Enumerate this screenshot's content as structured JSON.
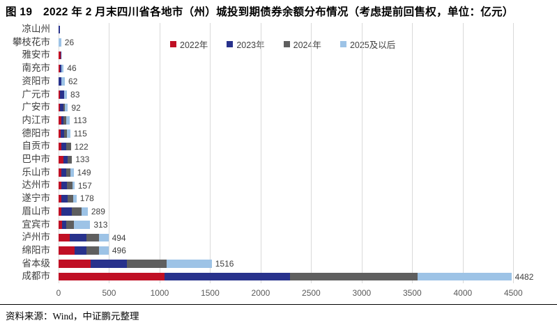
{
  "title": "图 19　2022 年 2 月末四川省各地市（州）城投到期债券余额分布情况（考虑提前回售权，单位：亿元）",
  "source": "资料来源：Wind，中证鹏元整理",
  "colors": {
    "red_2022": "#C01025",
    "navy_2023": "#28328C",
    "gray_2024": "#5F5F5F",
    "lightblue_2025": "#9DC3E6",
    "gridline": "#D9D9D9",
    "axis_text": "#595959",
    "label_text": "#404040"
  },
  "chart_data": {
    "type": "bar",
    "orientation": "horizontal",
    "stacked": true,
    "title": "2022 年 2 月末四川省各地市（州）城投到期债券余额分布情况（考虑提前回售权）",
    "unit": "亿元",
    "xlabel": "",
    "ylabel": "",
    "grid": true,
    "legend_position": "top",
    "xticks": [
      0,
      500,
      1000,
      1500,
      2000,
      2500,
      3000,
      3500,
      4000,
      4500
    ],
    "xlim": [
      0,
      4553
    ],
    "categories": [
      "凉山州",
      "攀枝花市",
      "雅安市",
      "南充市",
      "资阳市",
      "广元市",
      "广安市",
      "内江市",
      "德阳市",
      "自贡市",
      "巴中市",
      "乐山市",
      "达州市",
      "遂宁市",
      "眉山市",
      "宜宾市",
      "泸州市",
      "绵阳市",
      "省本级",
      "成都市"
    ],
    "totals": [
      3,
      26,
      29,
      46,
      62,
      83,
      92,
      113,
      115,
      122,
      133,
      149,
      157,
      178,
      289,
      313,
      494,
      496,
      1516,
      4482
    ],
    "value_labels": [
      "",
      "26",
      "",
      "46",
      "62",
      "83",
      "92",
      "113",
      "115",
      "122",
      "133",
      "149",
      "157",
      "178",
      "289",
      "313",
      "494",
      "496",
      "1516",
      "4482"
    ],
    "series": [
      {
        "name": "2022年",
        "color": "#C01025",
        "values": [
          0,
          0,
          18,
          14,
          0,
          15,
          10,
          28,
          22,
          30,
          45,
          30,
          25,
          28,
          25,
          35,
          110,
          156,
          320,
          1050
        ]
      },
      {
        "name": "2023年",
        "color": "#28328C",
        "values": [
          3,
          0,
          11,
          6,
          30,
          38,
          38,
          22,
          35,
          45,
          45,
          48,
          58,
          62,
          105,
          40,
          165,
          119,
          357,
          1240
        ]
      },
      {
        "name": "2024年",
        "color": "#5F5F5F",
        "values": [
          0,
          0,
          0,
          0,
          0,
          0,
          16,
          27,
          25,
          47,
          43,
          40,
          52,
          58,
          95,
          75,
          126,
          126,
          394,
          1260
        ]
      },
      {
        "name": "2025及以后",
        "color": "#9DC3E6",
        "values": [
          0,
          26,
          0,
          26,
          32,
          30,
          28,
          36,
          33,
          0,
          0,
          31,
          22,
          30,
          64,
          163,
          93,
          95,
          445,
          932
        ]
      }
    ]
  }
}
